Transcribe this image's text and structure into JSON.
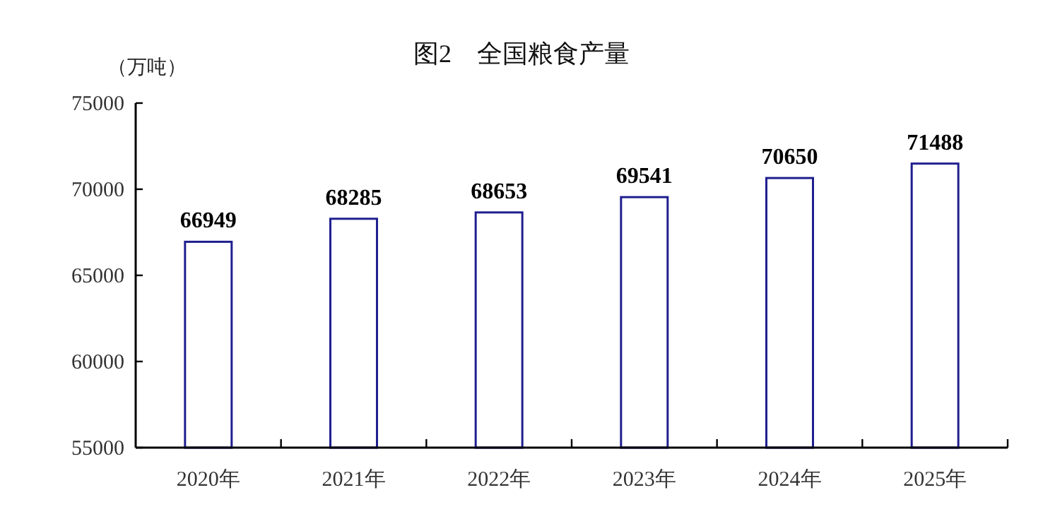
{
  "chart_data": {
    "type": "bar",
    "title": "图2　全国粮食产量",
    "ylabel": "（万吨）",
    "categories": [
      "2020年",
      "2021年",
      "2022年",
      "2023年",
      "2024年",
      "2025年"
    ],
    "values": [
      66949,
      68285,
      68653,
      69541,
      70650,
      71488
    ],
    "color": "#1f1f8f",
    "ylim": [
      55000,
      75000
    ],
    "yticks": [
      55000,
      60000,
      65000,
      70000,
      75000
    ],
    "data_labels": true
  }
}
